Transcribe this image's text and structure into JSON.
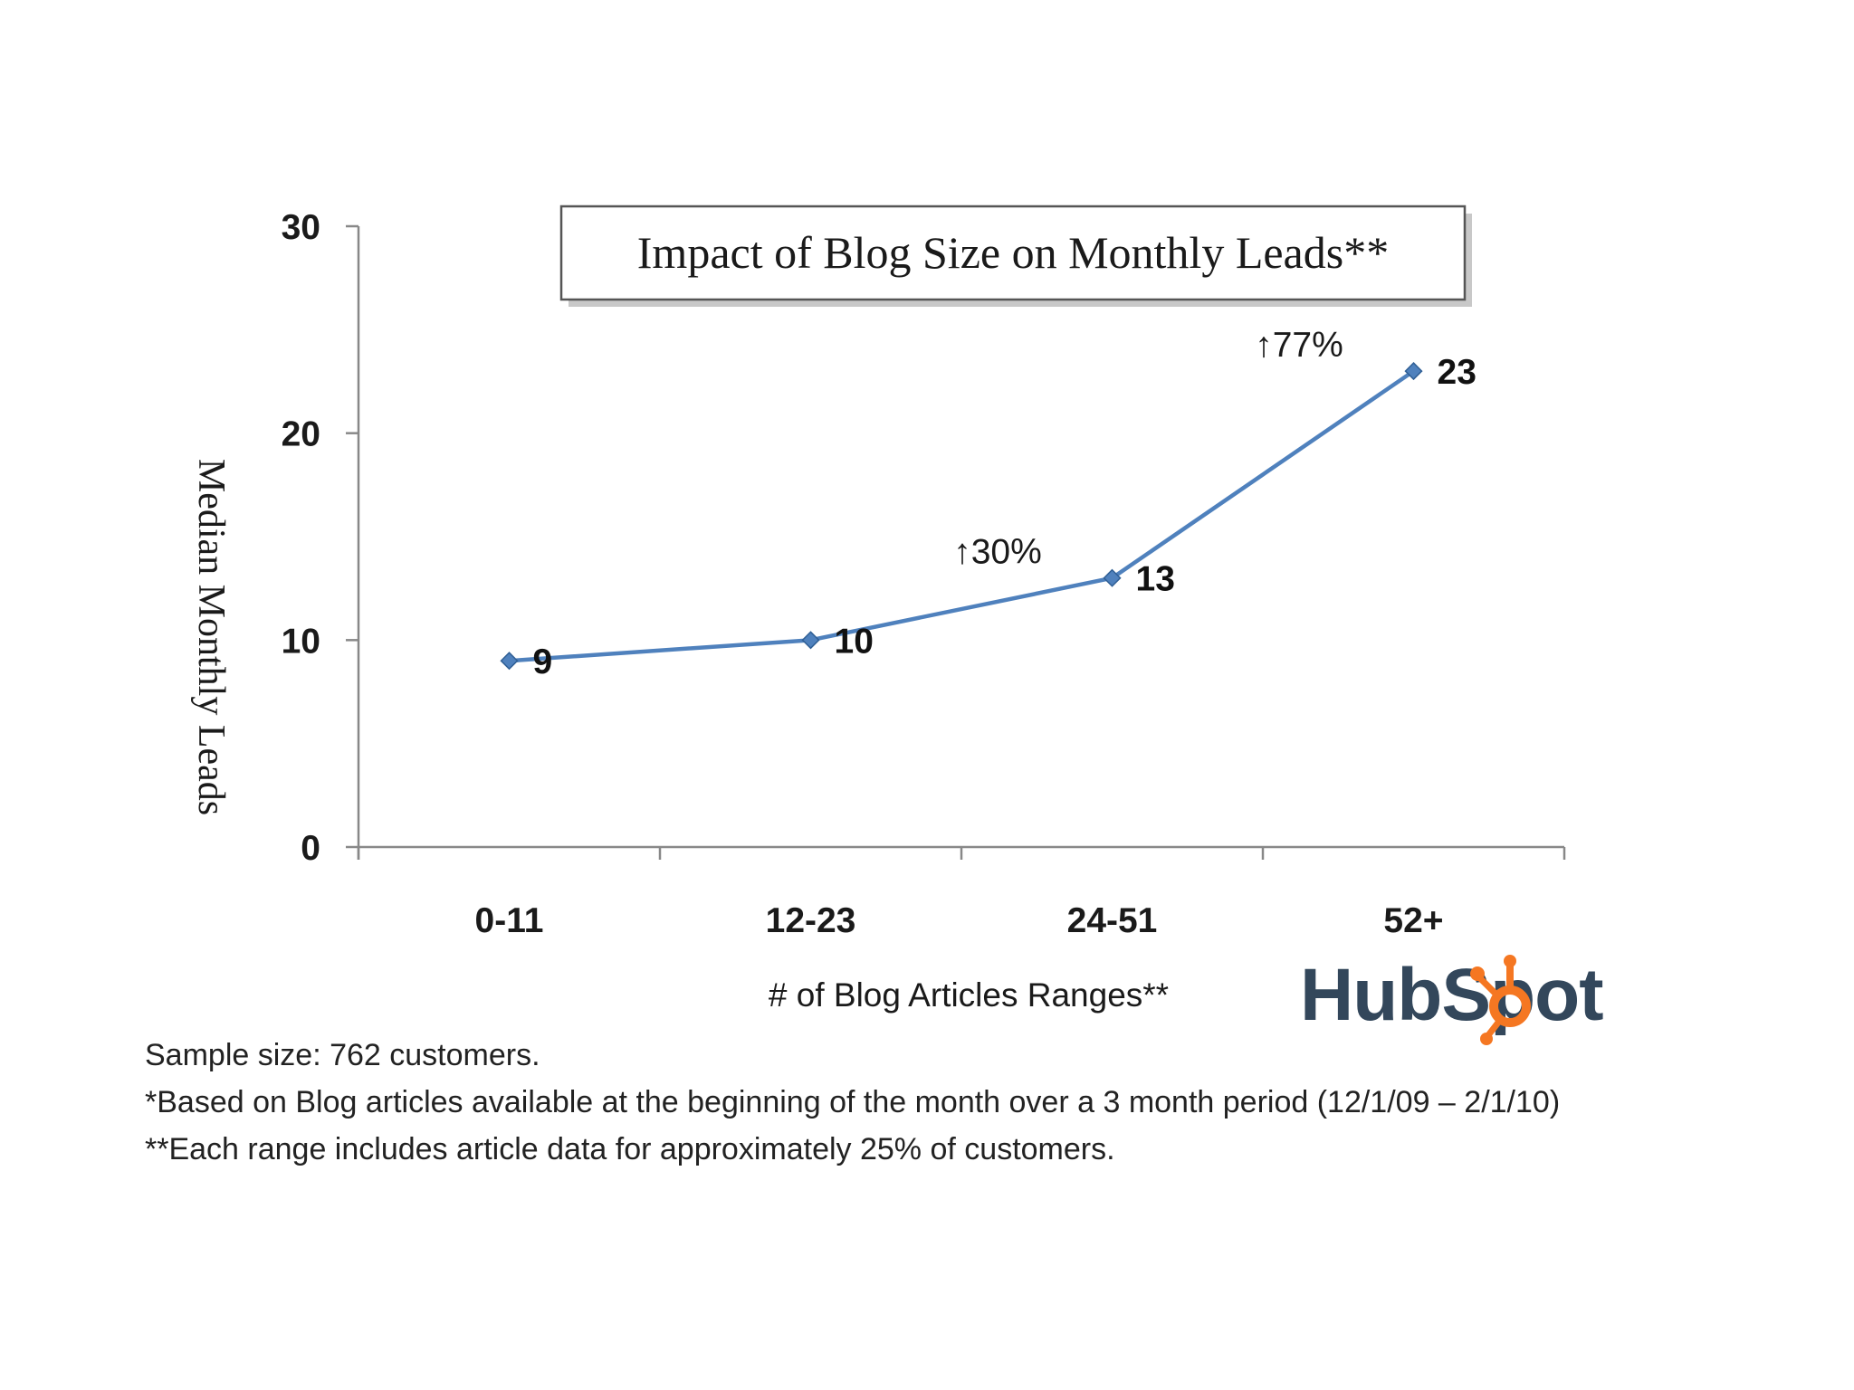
{
  "colors": {
    "line": "#4f81bd",
    "marker": "#4f81bd",
    "axis": "#888888",
    "hubspot_orange": "#f57722",
    "hubspot_dark": "#33475b"
  },
  "chart_data": {
    "type": "line",
    "title": "Impact of Blog Size on Monthly Leads**",
    "xlabel": "# of Blog Articles Ranges**",
    "ylabel": "Median Monthly Leads",
    "categories": [
      "0-11",
      "12-23",
      "24-51",
      "52+"
    ],
    "series": [
      {
        "values": [
          9,
          10,
          13,
          23
        ]
      }
    ],
    "data_labels": [
      "9",
      "10",
      "13",
      "23"
    ],
    "annotations": [
      {
        "text": "↑30%",
        "between": [
          "12-23",
          "24-51"
        ]
      },
      {
        "text": "↑77%",
        "between": [
          "24-51",
          "52+"
        ]
      }
    ],
    "ylim": [
      0,
      30
    ],
    "yticks": [
      0,
      10,
      20,
      30
    ],
    "ytick_labels": [
      "0",
      "10",
      "20",
      "30"
    ],
    "grid": false,
    "legend": "none"
  },
  "footnotes": {
    "line1": "Sample size: 762 customers.",
    "line2": "*Based on Blog articles available at the beginning of the month over a 3 month period  (12/1/09 – 2/1/10)",
    "line3": "**Each range includes article data for approximately 25% of customers."
  },
  "logo": {
    "text": "HubSpot",
    "icon": "hubspot-sprocket-icon"
  }
}
